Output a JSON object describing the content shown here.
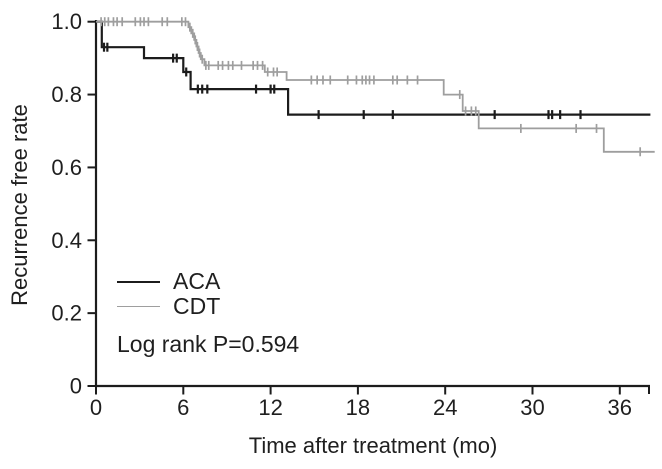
{
  "chart_data": {
    "type": "line",
    "subtype": "kaplan_meier_step_survival",
    "title": "",
    "xlabel": "Time after treatment (mo)",
    "ylabel": "Recurrence free rate",
    "xlim": [
      0,
      38.6
    ],
    "ylim": [
      0,
      1.0
    ],
    "x_ticks": [
      0,
      6,
      12,
      18,
      24,
      30,
      36
    ],
    "y_ticks": [
      "0",
      "0.2",
      "0.4",
      "0.6",
      "0.8",
      "1.0"
    ],
    "grid": false,
    "legend_position": "inside-left-middle",
    "annotation": "Log rank P=0.594",
    "axis_color": "#1c1c1c",
    "text_color": "#1f1f1f",
    "censor_mark": "vertical-tick",
    "series": [
      {
        "name": "ACA",
        "color": "#1c1c1c",
        "line_width": 2.2,
        "censor_width": 2.2,
        "steps": [
          [
            0,
            1.0
          ],
          [
            0.4,
            1.0
          ],
          [
            0.4,
            0.93
          ],
          [
            3.3,
            0.93
          ],
          [
            3.3,
            0.9
          ],
          [
            6.0,
            0.9
          ],
          [
            6.0,
            0.862
          ],
          [
            6.5,
            0.862
          ],
          [
            6.5,
            0.815
          ],
          [
            13.2,
            0.815
          ],
          [
            13.2,
            0.745
          ],
          [
            38.1,
            0.745
          ]
        ],
        "censors": [
          [
            0.55,
            0.93
          ],
          [
            0.78,
            0.93
          ],
          [
            5.3,
            0.9
          ],
          [
            5.55,
            0.9
          ],
          [
            6.2,
            0.862
          ],
          [
            7.0,
            0.815
          ],
          [
            7.3,
            0.815
          ],
          [
            7.65,
            0.815
          ],
          [
            11.0,
            0.815
          ],
          [
            12.0,
            0.815
          ],
          [
            12.25,
            0.815
          ],
          [
            15.3,
            0.745
          ],
          [
            18.4,
            0.745
          ],
          [
            20.4,
            0.745
          ],
          [
            27.4,
            0.745
          ],
          [
            31.1,
            0.745
          ],
          [
            31.35,
            0.745
          ],
          [
            31.9,
            0.745
          ],
          [
            33.3,
            0.745
          ]
        ]
      },
      {
        "name": "CDT",
        "color": "#9e9e9e",
        "line_width": 1.8,
        "censor_width": 1.7,
        "steps": [
          [
            0,
            1.0
          ],
          [
            6.35,
            1.0
          ],
          [
            6.35,
            0.985
          ],
          [
            6.55,
            0.985
          ],
          [
            6.55,
            0.968
          ],
          [
            6.75,
            0.968
          ],
          [
            6.75,
            0.95
          ],
          [
            6.9,
            0.95
          ],
          [
            6.9,
            0.932
          ],
          [
            7.05,
            0.932
          ],
          [
            7.05,
            0.914
          ],
          [
            7.2,
            0.914
          ],
          [
            7.2,
            0.897
          ],
          [
            7.45,
            0.897
          ],
          [
            7.45,
            0.88
          ],
          [
            11.6,
            0.88
          ],
          [
            11.6,
            0.862
          ],
          [
            13.1,
            0.862
          ],
          [
            13.1,
            0.84
          ],
          [
            23.9,
            0.84
          ],
          [
            23.9,
            0.8
          ],
          [
            25.2,
            0.8
          ],
          [
            25.2,
            0.755
          ],
          [
            26.3,
            0.755
          ],
          [
            26.3,
            0.707
          ],
          [
            34.9,
            0.707
          ],
          [
            34.9,
            0.643
          ],
          [
            38.4,
            0.643
          ]
        ],
        "censors": [
          [
            0.35,
            1.0
          ],
          [
            0.6,
            1.0
          ],
          [
            0.85,
            1.0
          ],
          [
            1.2,
            1.0
          ],
          [
            1.45,
            1.0
          ],
          [
            1.8,
            1.0
          ],
          [
            2.7,
            1.0
          ],
          [
            3.05,
            1.0
          ],
          [
            3.3,
            1.0
          ],
          [
            3.6,
            1.0
          ],
          [
            4.55,
            1.0
          ],
          [
            4.9,
            1.0
          ],
          [
            5.9,
            1.0
          ],
          [
            6.15,
            1.0
          ],
          [
            6.45,
            0.985
          ],
          [
            6.65,
            0.968
          ],
          [
            6.82,
            0.95
          ],
          [
            6.97,
            0.932
          ],
          [
            7.12,
            0.914
          ],
          [
            7.3,
            0.897
          ],
          [
            7.55,
            0.88
          ],
          [
            7.75,
            0.88
          ],
          [
            8.4,
            0.88
          ],
          [
            8.7,
            0.88
          ],
          [
            9.1,
            0.88
          ],
          [
            9.4,
            0.88
          ],
          [
            10.0,
            0.88
          ],
          [
            10.8,
            0.88
          ],
          [
            11.1,
            0.88
          ],
          [
            11.45,
            0.88
          ],
          [
            11.8,
            0.862
          ],
          [
            12.2,
            0.862
          ],
          [
            12.45,
            0.862
          ],
          [
            14.8,
            0.84
          ],
          [
            15.2,
            0.84
          ],
          [
            15.6,
            0.84
          ],
          [
            16.1,
            0.84
          ],
          [
            17.3,
            0.84
          ],
          [
            17.9,
            0.84
          ],
          [
            18.3,
            0.84
          ],
          [
            18.55,
            0.84
          ],
          [
            18.8,
            0.84
          ],
          [
            19.1,
            0.84
          ],
          [
            20.4,
            0.84
          ],
          [
            20.7,
            0.84
          ],
          [
            21.4,
            0.84
          ],
          [
            22.1,
            0.84
          ],
          [
            25.0,
            0.8
          ],
          [
            25.4,
            0.755
          ],
          [
            25.8,
            0.755
          ],
          [
            26.1,
            0.755
          ],
          [
            29.2,
            0.707
          ],
          [
            33.0,
            0.707
          ],
          [
            34.4,
            0.707
          ],
          [
            37.4,
            0.643
          ]
        ]
      }
    ]
  }
}
